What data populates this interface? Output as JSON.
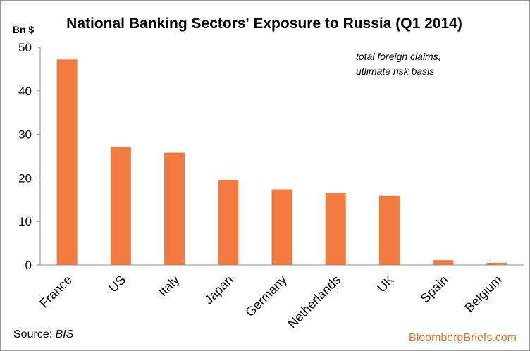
{
  "chart_data": {
    "type": "bar",
    "title": "National Banking Sectors' Exposure to Russia (Q1 2014)",
    "ylabel": "Bn $",
    "xlabel": "",
    "categories": [
      "France",
      "US",
      "Italy",
      "Japan",
      "Germany",
      "Netherlands",
      "UK",
      "Spain",
      "Belgium"
    ],
    "values": [
      47.2,
      27.2,
      25.8,
      19.5,
      17.4,
      16.5,
      15.9,
      1.1,
      0.5
    ],
    "ylim": [
      0,
      50
    ],
    "yticks": [
      0,
      10,
      20,
      30,
      40,
      50
    ],
    "grid": false,
    "annotation": [
      "total foreign claims,",
      "utlimate risk basis"
    ],
    "bar_color": "#F47B3F"
  },
  "footer": {
    "source_prefix": "Source: ",
    "source_name": "BIS",
    "brand": "BloombergBriefs.com",
    "brand_color": "#E8731E"
  }
}
